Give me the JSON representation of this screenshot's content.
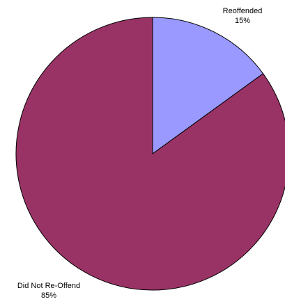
{
  "chart_data": {
    "type": "pie",
    "title": "",
    "slices": [
      {
        "label": "Reoffended",
        "value": 15,
        "value_label": "15%",
        "color": "#9999ff"
      },
      {
        "label": "Did Not Re-Offend",
        "value": 85,
        "value_label": "85%",
        "color": "#993366"
      }
    ],
    "start_angle_deg": 0,
    "direction": "clockwise",
    "legend": "none",
    "outline_color": "#000000"
  }
}
